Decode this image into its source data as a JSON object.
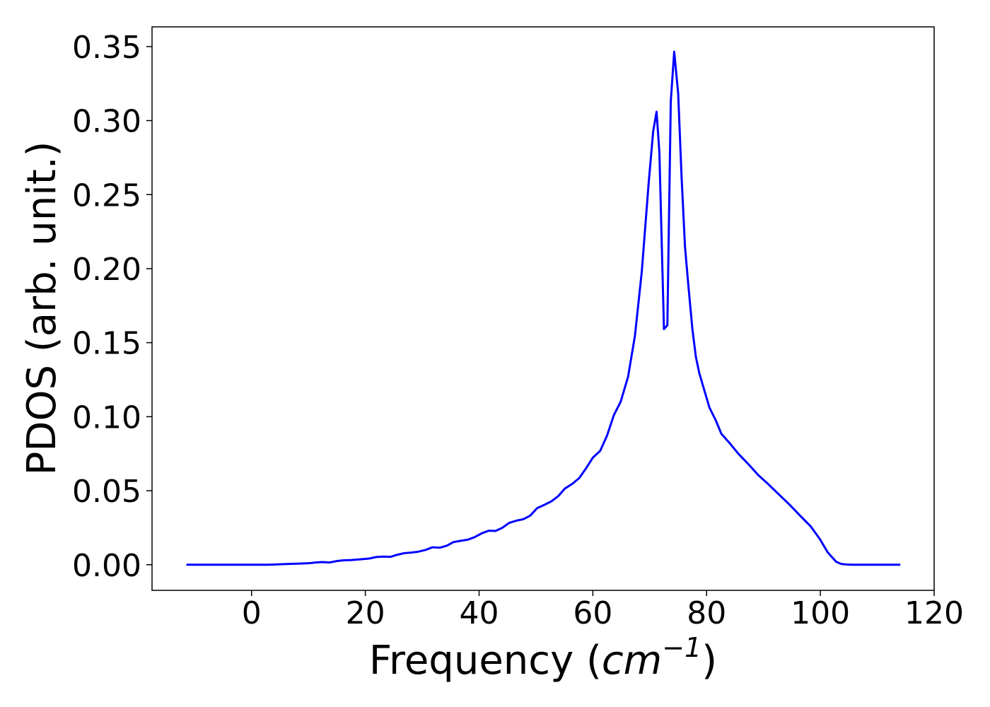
{
  "chart_data": {
    "type": "line",
    "title": "",
    "xlabel_prefix": "Frequency (",
    "xlabel_math_base": "cm",
    "xlabel_math_sup": "−1",
    "xlabel_suffix": ")",
    "ylabel": "PDOS (arb. unit.)",
    "xlim": [
      -17.5,
      120
    ],
    "ylim": [
      -0.0173,
      0.3633
    ],
    "xticks": [
      0,
      20,
      40,
      60,
      80,
      100,
      120
    ],
    "xtick_labels": [
      "0",
      "20",
      "40",
      "60",
      "80",
      "100",
      "120"
    ],
    "yticks": [
      0.0,
      0.05,
      0.1,
      0.15,
      0.2,
      0.25,
      0.3,
      0.35
    ],
    "ytick_labels": [
      "0.00",
      "0.05",
      "0.10",
      "0.15",
      "0.20",
      "0.25",
      "0.30",
      "0.35"
    ],
    "grid": false,
    "legend": "none",
    "series": [
      {
        "color": "#0000ff",
        "x": [
          -11.3,
          0,
          3,
          5,
          7,
          8.6,
          10,
          11.2,
          12.4,
          13.7,
          15,
          16.2,
          17.6,
          19.3,
          20.7,
          21.9,
          23.2,
          24.4,
          25.6,
          26.8,
          28,
          29.3,
          30.6,
          31.8,
          33.1,
          34.3,
          35.5,
          36.8,
          38,
          39.2,
          40.5,
          41.7,
          42.9,
          44.1,
          45.3,
          46.6,
          47.8,
          49,
          50.2,
          51.5,
          52.7,
          53.9,
          55.1,
          56.4,
          57.6,
          58.8,
          60,
          61.3,
          62.5,
          63.7,
          64.9,
          66.2,
          67.4,
          68.6,
          69.8,
          70.6,
          71.2,
          71.7,
          72.5,
          73.1,
          73.7,
          74.3,
          75,
          75.6,
          76.2,
          76.8,
          77.5,
          78.1,
          78.7,
          79.4,
          80.5,
          81.6,
          82.6,
          84.1,
          85.6,
          87.3,
          89.1,
          90.9,
          92.7,
          94.6,
          96.4,
          98.3,
          99.9,
          101.3,
          102.8,
          103.7,
          104.8,
          105.5,
          110,
          113.9
        ],
        "y": [
          0.0,
          0.0,
          0.0,
          0.0003,
          0.0006,
          0.0008,
          0.001,
          0.0015,
          0.0018,
          0.0015,
          0.0025,
          0.003,
          0.0032,
          0.0037,
          0.0042,
          0.0052,
          0.0055,
          0.0053,
          0.0067,
          0.0078,
          0.0082,
          0.0088,
          0.01,
          0.0118,
          0.0115,
          0.0128,
          0.0153,
          0.0162,
          0.0169,
          0.0186,
          0.0213,
          0.023,
          0.0228,
          0.025,
          0.0283,
          0.0298,
          0.0308,
          0.0332,
          0.0382,
          0.0405,
          0.0428,
          0.0463,
          0.0515,
          0.0547,
          0.0585,
          0.0651,
          0.0723,
          0.077,
          0.0873,
          0.1011,
          0.1102,
          0.1271,
          0.1547,
          0.1979,
          0.2573,
          0.2925,
          0.306,
          0.2784,
          0.1592,
          0.1617,
          0.313,
          0.3465,
          0.3183,
          0.2618,
          0.2147,
          0.1883,
          0.1591,
          0.1407,
          0.1296,
          0.1204,
          0.1061,
          0.0976,
          0.0884,
          0.0819,
          0.0749,
          0.0681,
          0.0605,
          0.0542,
          0.0475,
          0.0405,
          0.0333,
          0.0259,
          0.0174,
          0.0083,
          0.0019,
          0.0005,
          0.0001,
          0.0,
          0.0,
          0.0
        ]
      }
    ]
  }
}
